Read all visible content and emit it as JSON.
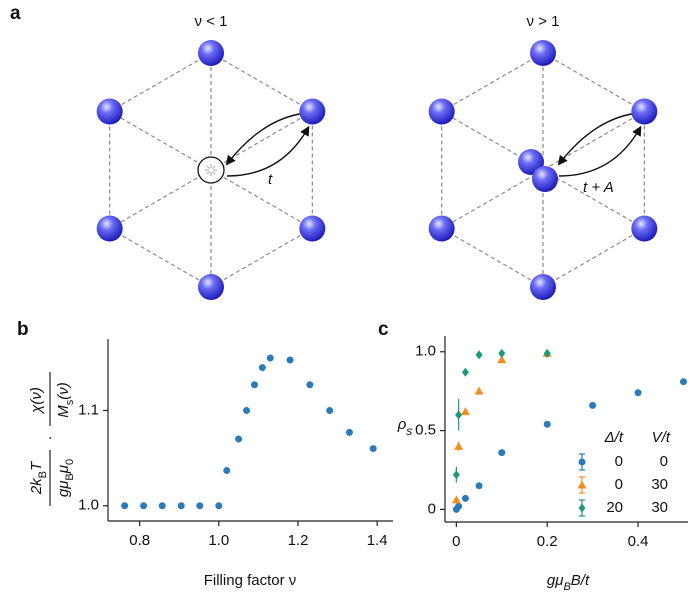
{
  "panel_a": {
    "letter": "a",
    "left_title": "ν < 1",
    "right_title": "ν > 1",
    "left_hop": "t",
    "right_hop": "t + A"
  },
  "chart_data": [
    {
      "type": "scatter",
      "letter": "b",
      "xlabel": "Filling factor ν",
      "ylabel": {
        "num1": [
          "2k",
          "B",
          "T"
        ],
        "den1": [
          "gμ",
          "B",
          "μ",
          "0"
        ],
        "dot": "·",
        "num2": "χ(ν)",
        "den2": [
          "M",
          "s",
          "(ν)"
        ]
      },
      "x": [
        0.762,
        0.81,
        0.857,
        0.905,
        0.952,
        1.0,
        1.02,
        1.05,
        1.07,
        1.09,
        1.11,
        1.13,
        1.18,
        1.23,
        1.28,
        1.33,
        1.39
      ],
      "values": [
        1.0,
        1.0,
        1.0,
        1.0,
        1.0,
        1.0,
        1.037,
        1.07,
        1.1,
        1.127,
        1.145,
        1.155,
        1.153,
        1.127,
        1.1,
        1.077,
        1.06
      ],
      "color": "#2b7bba",
      "xlim": [
        0.72,
        1.44
      ],
      "ylim": [
        0.984,
        1.175
      ],
      "xticks": [
        0.8,
        {
          "value": 1.0,
          "label": "1.0"
        },
        1.2,
        1.4
      ],
      "yticks": [
        {
          "value": 1.0,
          "label": "1.0"
        },
        1.1
      ]
    },
    {
      "type": "scatter",
      "letter": "c",
      "xlabel": [
        "gμ",
        "B",
        "B/t"
      ],
      "ylabel": [
        "ρ",
        "s"
      ],
      "legend_headers": [
        "Δ/t",
        "V/t"
      ],
      "series": [
        {
          "legend": [
            "0",
            "0"
          ],
          "color": "#2b7bba",
          "marker": "circle",
          "x": [
            0,
            0.005,
            0.02,
            0.05,
            0.1,
            0.2,
            0.3,
            0.4,
            0.5
          ],
          "values": [
            0.0,
            0.02,
            0.07,
            0.15,
            0.36,
            0.54,
            0.66,
            0.74,
            0.81
          ]
        },
        {
          "legend": [
            "0",
            "30"
          ],
          "color": "#f28e1c",
          "marker": "triangle",
          "x": [
            0,
            0.005,
            0.02,
            0.05,
            0.1,
            0.2
          ],
          "values": [
            0.06,
            0.4,
            0.62,
            0.75,
            0.95,
            0.99
          ],
          "errors": [
            0.01,
            0.03,
            0.02,
            0.01,
            0.01,
            0.01
          ]
        },
        {
          "legend": [
            "20",
            "30"
          ],
          "color": "#1a9a7a",
          "marker": "diamond",
          "x": [
            0,
            0.005,
            0.02,
            0.05,
            0.1,
            0.2
          ],
          "values": [
            0.22,
            0.6,
            0.87,
            0.98,
            0.99,
            0.99
          ],
          "errors": [
            0.05,
            0.1,
            0.02,
            0.02,
            0.02,
            0.02
          ]
        }
      ],
      "xlim": [
        -0.025,
        0.51
      ],
      "ylim": [
        -0.08,
        1.1
      ],
      "xticks": [
        0,
        0.2,
        0.4
      ],
      "yticks": [
        0,
        0.5,
        {
          "value": 1.0,
          "label": "1.0"
        }
      ]
    }
  ]
}
